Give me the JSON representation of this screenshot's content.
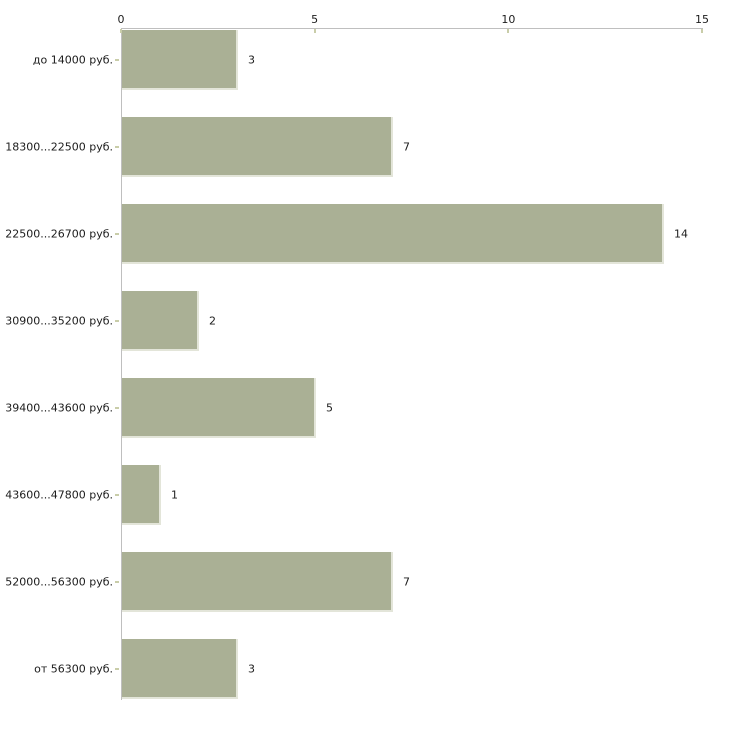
{
  "chart_data": {
    "type": "bar",
    "orientation": "horizontal",
    "title": "",
    "xlabel": "",
    "ylabel": "",
    "categories": [
      "до 14000 руб.",
      "18300...22500 руб.",
      "22500...26700 руб.",
      "30900...35200 руб.",
      "39400...43600 руб.",
      "43600...47800 руб.",
      "52000...56300 руб.",
      "от 56300 руб."
    ],
    "values": [
      3,
      7,
      14,
      2,
      5,
      1,
      7,
      3
    ],
    "value_labels": [
      "3",
      "7",
      "14",
      "2",
      "5",
      "1",
      "7",
      "3"
    ],
    "xlim": [
      0,
      15
    ],
    "x_ticks": [
      0,
      5,
      10,
      15
    ],
    "x_tick_labels": [
      "0",
      "5",
      "10",
      "15"
    ],
    "axis_position": "top",
    "grid": false,
    "legend": false,
    "colors": {
      "bar_fill": "#aab095",
      "bar_edge_light": "#e3e5d9",
      "axis_line": "#bfbfbf",
      "tick_mark": "#c9cda9",
      "text": "#1c1c1c",
      "background": "#ffffff"
    }
  }
}
